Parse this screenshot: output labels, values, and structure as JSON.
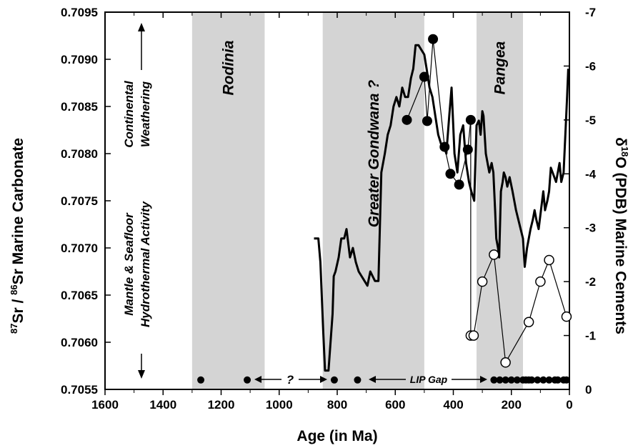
{
  "chart_data": {
    "type": "line",
    "xlabel": "Age (in Ma)",
    "ylabel_left_pre": "87",
    "ylabel_left_mid": "Sr / ",
    "ylabel_left_sup2": "86",
    "ylabel_left_post": "Sr  Marine Carbonate",
    "ylabel_right_pre": "δ",
    "ylabel_right_sup": "18",
    "ylabel_right_post": "O (PDB) Marine Cements",
    "xlim": [
      1600,
      0
    ],
    "ylim_left": [
      0.7055,
      0.7095
    ],
    "ylim_right": [
      0,
      -7
    ],
    "x_ticks": [
      "1600",
      "1400",
      "1200",
      "1000",
      "800",
      "600",
      "400",
      "200",
      "0"
    ],
    "x_tick_values": [
      1600,
      1400,
      1200,
      1000,
      800,
      600,
      400,
      200,
      0
    ],
    "y_left_ticks": [
      "0.7055",
      "0.7060",
      "0.7065",
      "0.7070",
      "0.7075",
      "0.7080",
      "0.7085",
      "0.7090",
      "0.7095"
    ],
    "y_left_tick_values": [
      0.7055,
      0.706,
      0.7065,
      0.707,
      0.7075,
      0.708,
      0.7085,
      0.709,
      0.7095
    ],
    "y_right_ticks": [
      "0",
      "-1",
      "-2",
      "-3",
      "-4",
      "-5",
      "-6",
      "-7"
    ],
    "y_right_tick_values": [
      0,
      -1,
      -2,
      -3,
      -4,
      -5,
      -6,
      -7
    ],
    "shaded_bands": [
      {
        "label": "Rodinia",
        "x_from": 1300,
        "x_to": 1050
      },
      {
        "label": "Greater Gondwana ?",
        "x_from": 850,
        "x_to": 500
      },
      {
        "label": "Pangea",
        "x_from": 320,
        "x_to": 160
      }
    ],
    "series": [
      {
        "style": "thick-line",
        "axis": "left",
        "x": [
          880,
          865,
          858,
          848,
          842,
          830,
          816,
          812,
          806,
          795,
          786,
          776,
          768,
          762,
          756,
          746,
          736,
          726,
          716,
          706,
          696,
          686,
          670,
          658,
          648,
          636,
          626,
          616,
          606,
          596,
          586,
          576,
          566,
          556,
          546,
          538,
          530,
          520,
          510,
          500,
          492,
          482,
          472,
          462,
          452,
          442,
          434,
          424,
          414,
          406,
          396,
          386,
          376,
          366,
          356,
          346,
          338,
          328,
          320,
          312,
          306,
          300,
          296,
          288,
          282,
          276,
          268,
          262,
          256,
          252,
          246,
          242,
          236,
          230,
          226,
          220,
          214,
          206,
          196,
          190,
          184,
          176,
          168,
          160,
          154,
          146,
          140,
          134,
          126,
          120,
          114,
          106,
          98,
          90,
          84,
          76,
          70,
          64,
          58,
          52,
          46,
          40,
          34,
          28,
          20,
          14,
          8,
          4
        ],
        "y": [
          0.7071,
          0.7071,
          0.70685,
          0.7061,
          0.7057,
          0.7057,
          0.7063,
          0.7067,
          0.70675,
          0.7069,
          0.7071,
          0.7071,
          0.7072,
          0.70705,
          0.7069,
          0.707,
          0.70685,
          0.70675,
          0.7067,
          0.70665,
          0.7066,
          0.70675,
          0.70665,
          0.70665,
          0.7078,
          0.708,
          0.7082,
          0.7083,
          0.7085,
          0.7086,
          0.7085,
          0.7087,
          0.7086,
          0.7086,
          0.7088,
          0.7089,
          0.70915,
          0.70915,
          0.7091,
          0.70905,
          0.7089,
          0.7087,
          0.7086,
          0.7084,
          0.7082,
          0.7081,
          0.7081,
          0.708,
          0.7084,
          0.7087,
          0.708,
          0.7078,
          0.7082,
          0.7083,
          0.7079,
          0.7077,
          0.7076,
          0.7075,
          0.7083,
          0.70835,
          0.7082,
          0.70845,
          0.7084,
          0.708,
          0.7079,
          0.7078,
          0.7079,
          0.7078,
          0.7074,
          0.7071,
          0.707,
          0.7069,
          0.7076,
          0.7077,
          0.7078,
          0.70775,
          0.70765,
          0.70775,
          0.7076,
          0.7075,
          0.7074,
          0.7073,
          0.7072,
          0.7071,
          0.7068,
          0.707,
          0.7071,
          0.7072,
          0.7073,
          0.7074,
          0.7073,
          0.7072,
          0.7074,
          0.7076,
          0.7074,
          0.7075,
          0.7076,
          0.70785,
          0.7078,
          0.70775,
          0.7077,
          0.7078,
          0.7079,
          0.7077,
          0.7078,
          0.7082,
          0.7086,
          0.7089
        ]
      },
      {
        "style": "filled-circles",
        "axis": "right",
        "x": [
          560,
          500,
          490,
          470,
          430,
          410,
          380,
          350,
          340
        ],
        "y": [
          -5.0,
          -5.8,
          -4.98,
          -6.5,
          -4.5,
          -4.0,
          -3.8,
          -4.45,
          -5.0
        ]
      },
      {
        "style": "open-circles",
        "axis": "right",
        "x": [
          340,
          330,
          300,
          260,
          220,
          140,
          100,
          70,
          10
        ],
        "y": [
          -1.0,
          -1.0,
          -2.0,
          -2.5,
          -0.5,
          -1.25,
          -2.0,
          -2.4,
          -1.35
        ]
      },
      {
        "style": "baseline-dots",
        "axis": "left",
        "x": [
          1270,
          1110,
          810,
          730,
          260,
          240,
          220,
          200,
          180,
          160,
          150,
          140,
          130,
          110,
          90,
          70,
          50,
          40,
          20,
          10
        ],
        "y": [
          0.7056,
          0.7056,
          0.7056,
          0.7056,
          0.7056,
          0.7056,
          0.7056,
          0.7056,
          0.7056,
          0.7056,
          0.7056,
          0.7056,
          0.7056,
          0.7056,
          0.7056,
          0.7056,
          0.7056,
          0.7056,
          0.7056,
          0.7056
        ]
      }
    ],
    "annotations": {
      "continental_1": "Continental",
      "continental_2": "Weathering",
      "mantle_1": "Mantle & Seafloor",
      "mantle_2": "Hydrothermal Activity",
      "question": "?",
      "lip_gap": "LIP Gap"
    }
  }
}
